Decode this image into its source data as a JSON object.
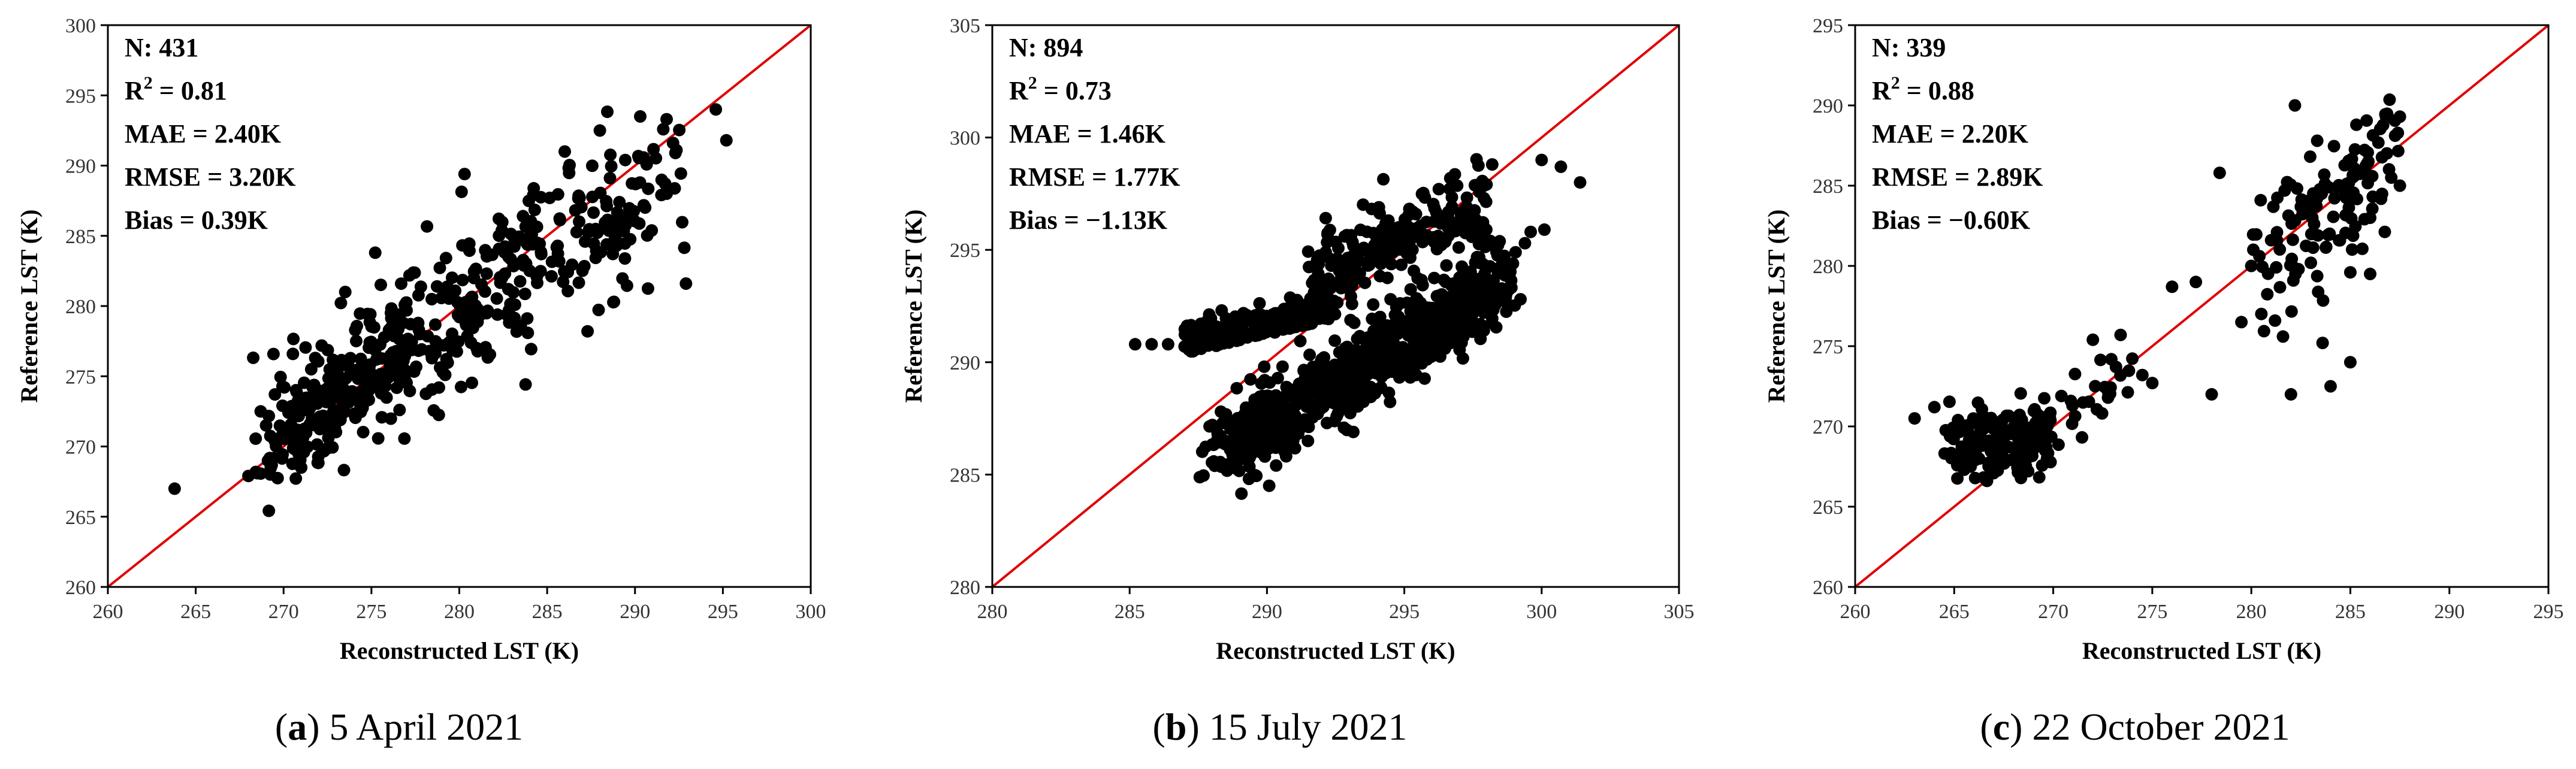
{
  "chart_data": [
    {
      "type": "scatter",
      "panel": "a",
      "caption": {
        "letter": "a",
        "text": "5 April 2021"
      },
      "xlabel": "Reconstructed LST (K)",
      "ylabel": "Reference LST (K)",
      "xlim": [
        260,
        300
      ],
      "ylim": [
        260,
        300
      ],
      "xticks": [
        260,
        265,
        270,
        275,
        280,
        285,
        290,
        295,
        300
      ],
      "yticks": [
        260,
        265,
        270,
        275,
        280,
        285,
        290,
        295,
        300
      ],
      "reference_line": "1:1",
      "stats": {
        "n_label": "N",
        "n": "431",
        "r2": "0.81",
        "mae": "2.40K",
        "rmse": "3.20K",
        "bias": "0.39K"
      },
      "points": [
        [
          263.8,
          267.0
        ],
        [
          295.2,
          291.8
        ],
        [
          294.6,
          294.0
        ],
        [
          292.9,
          281.6
        ],
        [
          290.3,
          293.5
        ],
        [
          291.8,
          293.3
        ],
        [
          286.0,
          291.0
        ],
        [
          280.3,
          289.4
        ],
        [
          288.0,
          292.5
        ],
        [
          268.0,
          267.9
        ],
        [
          268.5,
          268.1
        ],
        [
          271.0,
          268.5
        ],
        [
          269.5,
          270.4
        ],
        [
          268.7,
          272.5
        ],
        [
          292.3,
          290.9
        ],
        [
          291.8,
          288.0
        ],
        [
          287.3,
          278.2
        ],
        [
          288.8,
          280.3
        ],
        [
          283.5,
          278.6
        ],
        [
          282.8,
          283.5
        ],
        [
          279.2,
          275.1
        ],
        [
          276.6,
          272.6
        ]
      ],
      "cloud": {
        "seed": 11,
        "count": 410,
        "x_min": 268,
        "x_max": 293,
        "slope": 0.78,
        "intercept": 61.5,
        "noise": 2.8
      }
    },
    {
      "type": "scatter",
      "panel": "b",
      "caption": {
        "letter": "b",
        "text": "15 July 2021"
      },
      "xlabel": "Reconstructed LST (K)",
      "ylabel": "Reference LST (K)",
      "xlim": [
        280,
        305
      ],
      "ylim": [
        280,
        305
      ],
      "xticks": [
        280,
        285,
        290,
        295,
        300,
        305
      ],
      "yticks": [
        280,
        285,
        290,
        295,
        300,
        305
      ],
      "reference_line": "1:1",
      "stats": {
        "n_label": "N",
        "n": "894",
        "r2": "0.73",
        "mae": "1.46K",
        "rmse": "1.77K",
        "bias": "−1.13K"
      },
      "points": [
        [
          285.2,
          290.8
        ],
        [
          285.8,
          290.8
        ],
        [
          286.4,
          290.8
        ],
        [
          287.0,
          290.7
        ],
        [
          287.6,
          290.6
        ],
        [
          301.4,
          298.0
        ],
        [
          300.0,
          299.0
        ],
        [
          300.7,
          298.7
        ],
        [
          299.6,
          295.8
        ],
        [
          300.1,
          295.9
        ],
        [
          289.9,
          289.8
        ],
        [
          294.5,
          292.8
        ],
        [
          298.2,
          298.8
        ],
        [
          297.9,
          297.3
        ]
      ],
      "cloud": {
        "seed": 23,
        "count": 860,
        "x_min": 287.5,
        "x_max": 299.5,
        "slope": 0.72,
        "intercept": 78.5,
        "noise": 0.9
      }
    },
    {
      "type": "scatter",
      "panel": "c",
      "caption": {
        "letter": "c",
        "text": "22 October 2021"
      },
      "xlabel": "Reconstructed LST (K)",
      "ylabel": "Reference LST (K)",
      "xlim": [
        260,
        295
      ],
      "ylim": [
        260,
        295
      ],
      "xticks": [
        260,
        265,
        270,
        275,
        280,
        285,
        290,
        295
      ],
      "yticks": [
        260,
        265,
        270,
        275,
        280,
        285,
        290,
        295
      ],
      "reference_line": "1:1",
      "stats": {
        "n_label": "N",
        "n": "339",
        "r2": "0.88",
        "mae": "2.20K",
        "rmse": "2.89K",
        "bias": "−0.60K"
      },
      "points": [
        [
          263.0,
          270.5
        ],
        [
          264.0,
          271.2
        ],
        [
          282.2,
          290.0
        ],
        [
          282.0,
          272.0
        ],
        [
          284.0,
          272.5
        ],
        [
          283.6,
          275.2
        ],
        [
          285.0,
          274.0
        ],
        [
          281.6,
          275.6
        ],
        [
          278.4,
          285.8
        ],
        [
          277.2,
          279.0
        ],
        [
          275.0,
          272.7
        ],
        [
          274.5,
          273.2
        ],
        [
          273.4,
          275.7
        ],
        [
          276.0,
          278.7
        ],
        [
          272.0,
          275.4
        ],
        [
          278.0,
          272.0
        ],
        [
          286.8,
          289.3
        ],
        [
          287.5,
          289.3
        ],
        [
          286.0,
          283.0
        ],
        [
          287.5,
          285.0
        ],
        [
          285.0,
          279.6
        ],
        [
          286.0,
          279.5
        ],
        [
          280.0,
          280.0
        ],
        [
          281.0,
          281.6
        ],
        [
          279.5,
          276.5
        ]
      ],
      "cloud": {
        "seed": 37,
        "count": 300,
        "x_min": 264,
        "x_max": 287.5,
        "slope": 1.0,
        "intercept": 0.0,
        "noise": 2.2
      }
    }
  ]
}
